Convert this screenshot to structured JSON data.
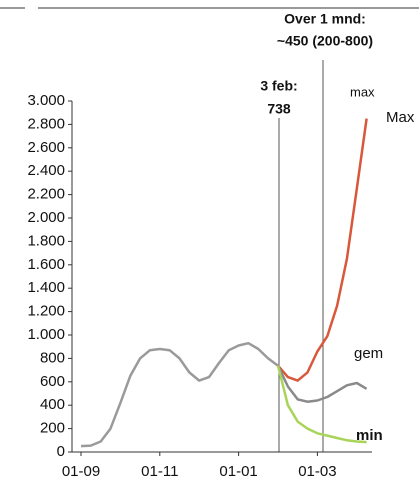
{
  "chart_data": {
    "type": "line",
    "categories": [
      "01-09",
      null,
      null,
      null,
      null,
      null,
      null,
      null,
      "01-11",
      null,
      null,
      null,
      null,
      null,
      null,
      null,
      "01-01",
      null,
      null,
      null,
      null,
      null,
      null,
      null,
      "01-03",
      null,
      null,
      null,
      null,
      null
    ],
    "series": [
      {
        "color": "#9a9a9a",
        "values": [
          50,
          55,
          90,
          200,
          420,
          650,
          800,
          870,
          880,
          870,
          800,
          680,
          610,
          640,
          760,
          870,
          910,
          930,
          880,
          800,
          738,
          null,
          null,
          null,
          null,
          null,
          null,
          null,
          null,
          null
        ]
      },
      {
        "name": "max",
        "color": "#d9573a",
        "values": [
          null,
          null,
          null,
          null,
          null,
          null,
          null,
          null,
          null,
          null,
          null,
          null,
          null,
          null,
          null,
          null,
          null,
          null,
          null,
          null,
          738,
          640,
          610,
          680,
          860,
          990,
          1250,
          1650,
          2250,
          2850
        ]
      },
      {
        "name": "gem",
        "color": "#8a8a8a",
        "values": [
          null,
          null,
          null,
          null,
          null,
          null,
          null,
          null,
          null,
          null,
          null,
          null,
          null,
          null,
          null,
          null,
          null,
          null,
          null,
          null,
          738,
          560,
          450,
          430,
          440,
          470,
          520,
          570,
          590,
          540
        ]
      },
      {
        "name": "min",
        "color": "#a9d45a",
        "values": [
          null,
          null,
          null,
          null,
          null,
          null,
          null,
          null,
          null,
          null,
          null,
          null,
          null,
          null,
          null,
          null,
          null,
          null,
          null,
          null,
          738,
          400,
          260,
          200,
          160,
          140,
          120,
          100,
          90,
          85
        ]
      }
    ],
    "ylim": [
      0,
      3000
    ],
    "yticks": [
      0,
      200,
      400,
      600,
      800,
      {
        "value": 1000,
        "label": "1.000"
      },
      {
        "value": 1200,
        "label": "1.200"
      },
      {
        "value": 1400,
        "label": "1.400"
      },
      {
        "value": 1600,
        "label": "1.600"
      },
      {
        "value": 1800,
        "label": "1.800"
      },
      {
        "value": 2000,
        "label": "2.000"
      },
      {
        "value": 2200,
        "label": "2.200"
      },
      {
        "value": 2400,
        "label": "2.400"
      },
      {
        "value": 2600,
        "label": "2.600"
      },
      {
        "value": 2800,
        "label": "2.800"
      },
      {
        "value": 3000,
        "label": "3.000"
      }
    ],
    "annotations": {
      "feb_label": "3 feb:",
      "feb_value": "738",
      "month_label": "Over 1 mnd:",
      "month_value": "~450 (200-800)",
      "max_label": "Max"
    }
  }
}
